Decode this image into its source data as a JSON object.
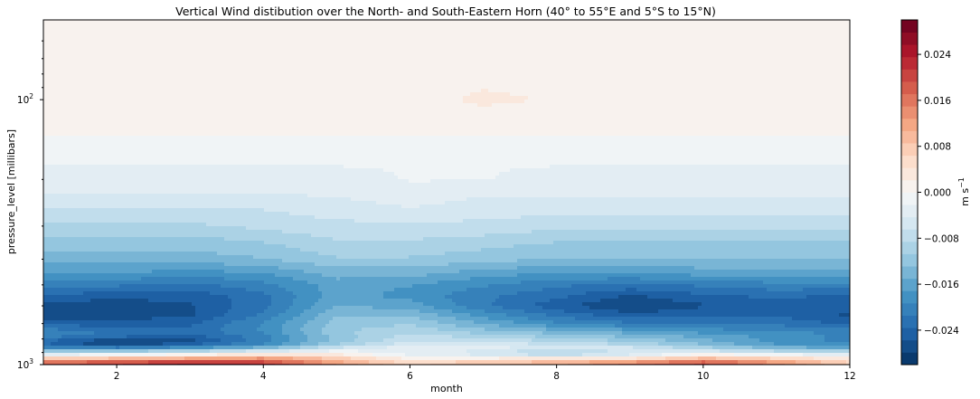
{
  "chart_data": {
    "type": "heatmap",
    "title": "Vertical Wind distibution over the North- and South-Eastern Horn (40° to 55°E and 5°S to 15°N)",
    "xlabel": "month",
    "ylabel": "pressure_level [millibars]",
    "xlim": [
      1,
      12
    ],
    "xticks": [
      2,
      4,
      6,
      8,
      10,
      12
    ],
    "yscale": "log",
    "ylim": [
      1000,
      50
    ],
    "yticks": [
      {
        "value": 100,
        "label_base": "10",
        "label_exp": "2"
      },
      {
        "value": 1000,
        "label_base": "10",
        "label_exp": "3"
      }
    ],
    "colorbar": {
      "label": "m s",
      "label_exp": "−1",
      "colormap": "RdBu_r",
      "vmin": -0.03,
      "vmax": 0.03,
      "levels": 28,
      "ticks": [
        {
          "value": -0.024,
          "label": "−0.024"
        },
        {
          "value": -0.016,
          "label": "−0.016"
        },
        {
          "value": -0.008,
          "label": "−0.008"
        },
        {
          "value": 0.0,
          "label": "0.000"
        },
        {
          "value": 0.008,
          "label": "0.008"
        },
        {
          "value": 0.016,
          "label": "0.016"
        },
        {
          "value": 0.024,
          "label": "0.024"
        }
      ]
    },
    "months": [
      1,
      2,
      3,
      4,
      5,
      6,
      7,
      8,
      9,
      10,
      11,
      12
    ],
    "pressure_levels": [
      1000,
      975,
      950,
      925,
      900,
      875,
      850,
      825,
      800,
      775,
      750,
      700,
      650,
      600,
      550,
      500,
      450,
      400,
      350,
      300,
      250,
      225,
      200,
      175,
      150,
      125,
      100,
      70,
      50
    ],
    "grid": [
      [
        0.02,
        0.023,
        0.029,
        0.025,
        0.015,
        0.008,
        0.01,
        0.012,
        0.018,
        0.022,
        0.016,
        0.008
      ],
      [
        0.015,
        0.018,
        0.02,
        0.019,
        0.011,
        0.005,
        0.007,
        0.009,
        0.012,
        0.017,
        0.012,
        0.006
      ],
      [
        0.008,
        0.01,
        0.012,
        0.014,
        0.008,
        0.002,
        0.003,
        0.004,
        0.005,
        0.01,
        0.007,
        0.003
      ],
      [
        0.0,
        0.001,
        0.004,
        0.007,
        0.004,
        -0.002,
        -0.004,
        -0.006,
        -0.003,
        0.003,
        0.001,
        -0.002
      ],
      [
        -0.008,
        -0.008,
        -0.006,
        -0.002,
        0.0,
        -0.004,
        -0.006,
        -0.011,
        -0.007,
        -0.004,
        -0.006,
        -0.008
      ],
      [
        -0.016,
        -0.016,
        -0.014,
        -0.01,
        -0.004,
        -0.002,
        -0.003,
        -0.005,
        -0.004,
        -0.008,
        -0.012,
        -0.014
      ],
      [
        -0.022,
        -0.026,
        -0.022,
        -0.018,
        -0.009,
        -0.004,
        -0.004,
        -0.006,
        -0.008,
        -0.012,
        -0.016,
        -0.018
      ],
      [
        -0.024,
        -0.029,
        -0.026,
        -0.02,
        -0.012,
        -0.006,
        -0.006,
        -0.008,
        -0.01,
        -0.014,
        -0.018,
        -0.02
      ],
      [
        -0.022,
        -0.026,
        -0.026,
        -0.02,
        -0.012,
        -0.007,
        -0.008,
        -0.01,
        -0.012,
        -0.015,
        -0.018,
        -0.02
      ],
      [
        -0.02,
        -0.022,
        -0.024,
        -0.02,
        -0.012,
        -0.008,
        -0.01,
        -0.012,
        -0.014,
        -0.016,
        -0.018,
        -0.02
      ],
      [
        -0.02,
        -0.022,
        -0.023,
        -0.019,
        -0.011,
        -0.009,
        -0.012,
        -0.014,
        -0.016,
        -0.018,
        -0.019,
        -0.02
      ],
      [
        -0.024,
        -0.025,
        -0.024,
        -0.019,
        -0.012,
        -0.011,
        -0.015,
        -0.019,
        -0.021,
        -0.022,
        -0.022,
        -0.024
      ],
      [
        -0.027,
        -0.027,
        -0.026,
        -0.021,
        -0.013,
        -0.013,
        -0.018,
        -0.022,
        -0.025,
        -0.024,
        -0.024,
        -0.026
      ],
      [
        -0.027,
        -0.027,
        -0.026,
        -0.022,
        -0.015,
        -0.016,
        -0.021,
        -0.025,
        -0.028,
        -0.026,
        -0.025,
        -0.025
      ],
      [
        -0.024,
        -0.025,
        -0.025,
        -0.022,
        -0.016,
        -0.018,
        -0.021,
        -0.023,
        -0.026,
        -0.024,
        -0.023,
        -0.024
      ],
      [
        -0.02,
        -0.021,
        -0.022,
        -0.02,
        -0.016,
        -0.017,
        -0.019,
        -0.021,
        -0.022,
        -0.021,
        -0.02,
        -0.02
      ],
      [
        -0.017,
        -0.017,
        -0.018,
        -0.017,
        -0.014,
        -0.014,
        -0.016,
        -0.017,
        -0.017,
        -0.016,
        -0.016,
        -0.016
      ],
      [
        -0.014,
        -0.014,
        -0.014,
        -0.013,
        -0.011,
        -0.011,
        -0.012,
        -0.013,
        -0.013,
        -0.013,
        -0.013,
        -0.013
      ],
      [
        -0.012,
        -0.012,
        -0.012,
        -0.011,
        -0.009,
        -0.009,
        -0.01,
        -0.011,
        -0.011,
        -0.011,
        -0.011,
        -0.011
      ],
      [
        -0.009,
        -0.009,
        -0.009,
        -0.008,
        -0.007,
        -0.007,
        -0.007,
        -0.008,
        -0.008,
        -0.008,
        -0.008,
        -0.008
      ],
      [
        -0.006,
        -0.006,
        -0.006,
        -0.006,
        -0.005,
        -0.004,
        -0.005,
        -0.005,
        -0.005,
        -0.005,
        -0.005,
        -0.005
      ],
      [
        -0.004,
        -0.004,
        -0.004,
        -0.004,
        -0.004,
        -0.003,
        -0.004,
        -0.004,
        -0.004,
        -0.004,
        -0.004,
        -0.004
      ],
      [
        -0.003,
        -0.003,
        -0.003,
        -0.003,
        -0.003,
        -0.002,
        -0.002,
        -0.003,
        -0.003,
        -0.003,
        -0.003,
        -0.003
      ],
      [
        -0.002,
        -0.002,
        -0.002,
        -0.002,
        -0.002,
        -0.002,
        -0.002,
        -0.002,
        -0.002,
        -0.002,
        -0.002,
        -0.002
      ],
      [
        -0.001,
        -0.001,
        -0.001,
        -0.001,
        -0.001,
        -0.001,
        -0.001,
        -0.001,
        -0.001,
        -0.001,
        -0.001,
        -0.001
      ],
      [
        0.001,
        0.001,
        0.001,
        0.001,
        0.001,
        0.001,
        0.001,
        0.001,
        0.001,
        0.001,
        0.001,
        0.001
      ],
      [
        0.001,
        0.001,
        0.001,
        0.001,
        0.001,
        0.0015,
        0.0025,
        0.002,
        0.001,
        0.001,
        0.001,
        0.001
      ],
      [
        0.001,
        0.001,
        0.001,
        0.001,
        0.001,
        0.001,
        0.001,
        0.001,
        0.001,
        0.001,
        0.001,
        0.001
      ],
      [
        0.001,
        0.001,
        0.001,
        0.001,
        0.001,
        0.001,
        0.001,
        0.001,
        0.001,
        0.001,
        0.001,
        0.001
      ]
    ]
  },
  "colors": {
    "axis": "#000000",
    "stops": [
      "#053061",
      "#2166ac",
      "#4393c3",
      "#92c5de",
      "#d1e5f0",
      "#f7f7f7",
      "#fddbc7",
      "#f4a582",
      "#d6604d",
      "#b2182b",
      "#67001f"
    ]
  }
}
